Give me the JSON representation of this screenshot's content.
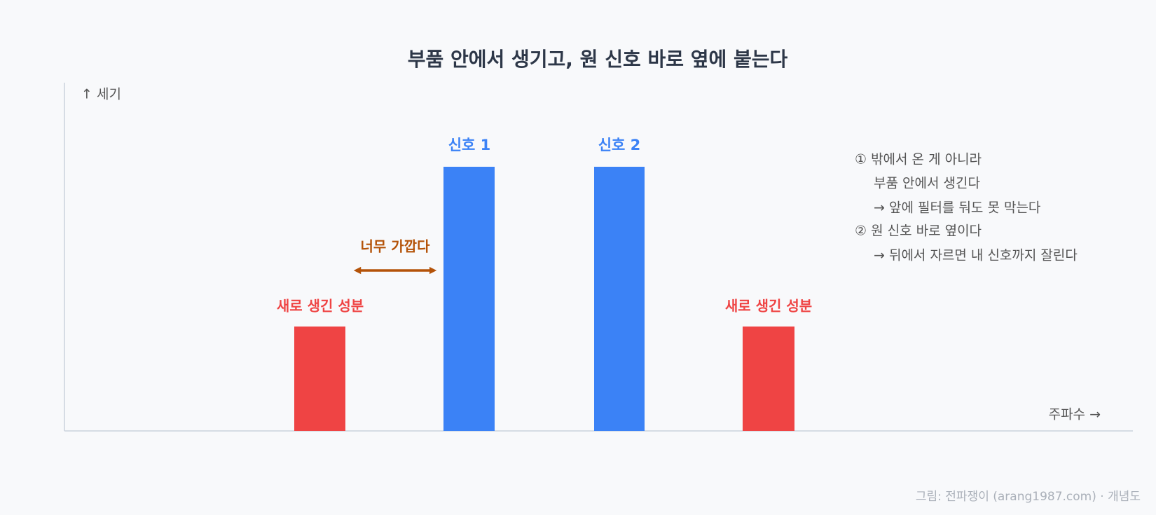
{
  "title": "부품 안에서 생기고, 원 신호 바로 옆에 붙는다",
  "axes": {
    "y_label": "↑ 세기",
    "x_label": "주파수 →"
  },
  "bars": [
    {
      "label": "새로 생긴 성분"
    },
    {
      "label": "신호 1"
    },
    {
      "label": "신호 2"
    },
    {
      "label": "새로 생긴 성분"
    }
  ],
  "annotation": "너무 가깝다",
  "notes": [
    "① 밖에서 온 게 아니라",
    "부품 안에서 생긴다",
    "→ 앞에 필터를 둬도 못 막는다",
    "② 원 신호 바로 옆이다",
    "→ 뒤에서 자르면 내 신호까지 잘린다"
  ],
  "footer": "그림: 전파쟁이 (arang1987.com) · 개념도"
}
